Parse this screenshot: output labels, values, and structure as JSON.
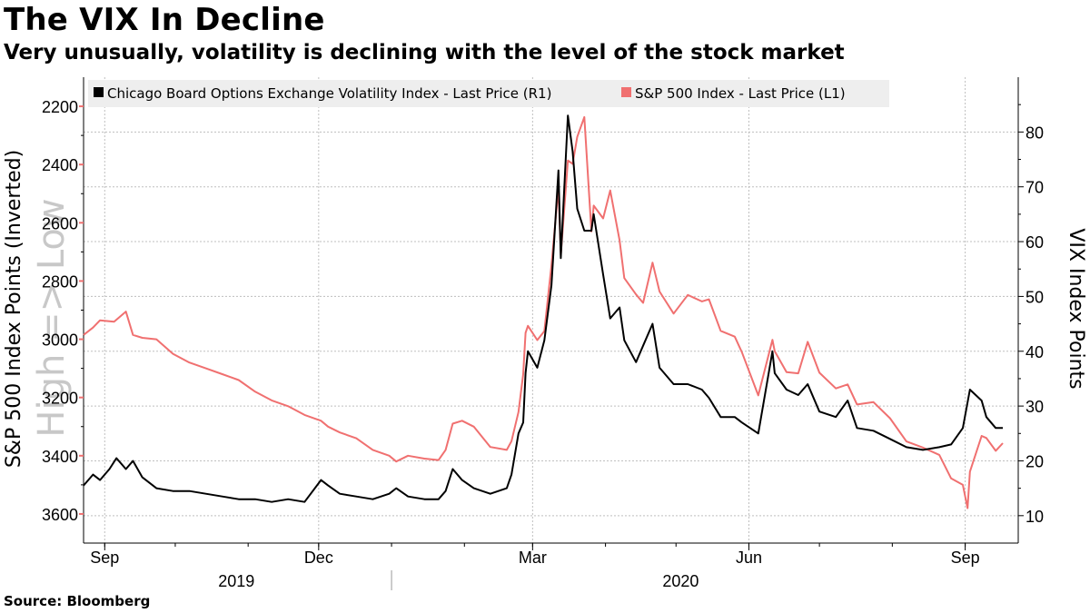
{
  "header": {
    "title": "The VIX In Decline",
    "subtitle": "Very unusually, volatility is declining with the level of the stock market"
  },
  "footer": {
    "source": "Source: Bloomberg"
  },
  "colors": {
    "vix": "#000000",
    "spx": "#f07070",
    "grid": "#bfbfbf",
    "legend_bg": "#eeeeee",
    "watermark": "#c8c8c8"
  },
  "chart_data": {
    "type": "line",
    "title": "The VIX In Decline",
    "left_axis": {
      "label": "S&P 500 Index Points (Inverted)",
      "watermark": "High => Low",
      "range": [
        3700,
        2100
      ],
      "ticks": [
        "2200",
        "2400",
        "2600",
        "2800",
        "3000",
        "3200",
        "3400",
        "3600"
      ]
    },
    "right_axis": {
      "label": "VIX Index Points",
      "range": [
        5,
        90
      ],
      "ticks": [
        "10",
        "20",
        "30",
        "40",
        "50",
        "60",
        "70",
        "80"
      ]
    },
    "x_axis": {
      "start": "2019-08-23",
      "end": "2020-09-17",
      "month_labels": [
        {
          "label": "Sep",
          "date": "2019-09-01"
        },
        {
          "label": "Dec",
          "date": "2019-12-01"
        },
        {
          "label": "Mar",
          "date": "2020-03-01"
        },
        {
          "label": "Jun",
          "date": "2020-06-01"
        },
        {
          "label": "Sep",
          "date": "2020-09-01"
        }
      ],
      "year_labels": [
        {
          "label": "2019",
          "date": "2019-10-27"
        },
        {
          "label": "2020",
          "date": "2020-05-03"
        }
      ]
    },
    "legend": [
      "Chicago Board Options Exchange Volatility Index - Last Price (R1)",
      "S&P 500 Index - Last Price (L1)"
    ],
    "series": [
      {
        "name": "Chicago Board Options Exchange Volatility Index - Last Price (R1)",
        "axis": "right",
        "points": [
          [
            "2019-08-23",
            15.5
          ],
          [
            "2019-08-27",
            17.5
          ],
          [
            "2019-08-30",
            16.5
          ],
          [
            "2019-09-03",
            18.5
          ],
          [
            "2019-09-06",
            20.5
          ],
          [
            "2019-09-10",
            18.5
          ],
          [
            "2019-09-13",
            20
          ],
          [
            "2019-09-17",
            17
          ],
          [
            "2019-09-23",
            15
          ],
          [
            "2019-09-30",
            14.5
          ],
          [
            "2019-10-07",
            14.5
          ],
          [
            "2019-10-14",
            14
          ],
          [
            "2019-10-21",
            13.5
          ],
          [
            "2019-10-28",
            13
          ],
          [
            "2019-11-04",
            13
          ],
          [
            "2019-11-11",
            12.5
          ],
          [
            "2019-11-18",
            13
          ],
          [
            "2019-11-25",
            12.5
          ],
          [
            "2019-12-02",
            16.5
          ],
          [
            "2019-12-05",
            15.5
          ],
          [
            "2019-12-10",
            14
          ],
          [
            "2019-12-17",
            13.5
          ],
          [
            "2019-12-24",
            13
          ],
          [
            "2019-12-31",
            14
          ],
          [
            "2020-01-03",
            15
          ],
          [
            "2020-01-08",
            13.5
          ],
          [
            "2020-01-15",
            13
          ],
          [
            "2020-01-21",
            13
          ],
          [
            "2020-01-24",
            14.5
          ],
          [
            "2020-01-27",
            18.5
          ],
          [
            "2020-01-31",
            16.5
          ],
          [
            "2020-02-05",
            15
          ],
          [
            "2020-02-12",
            14
          ],
          [
            "2020-02-19",
            15
          ],
          [
            "2020-02-21",
            17.5
          ],
          [
            "2020-02-24",
            25
          ],
          [
            "2020-02-26",
            27
          ],
          [
            "2020-02-27",
            36
          ],
          [
            "2020-02-28",
            40
          ],
          [
            "2020-03-03",
            37
          ],
          [
            "2020-03-06",
            42
          ],
          [
            "2020-03-09",
            52
          ],
          [
            "2020-03-12",
            73
          ],
          [
            "2020-03-13",
            57
          ],
          [
            "2020-03-16",
            83
          ],
          [
            "2020-03-18",
            76.5
          ],
          [
            "2020-03-20",
            66
          ],
          [
            "2020-03-23",
            62
          ],
          [
            "2020-03-26",
            62
          ],
          [
            "2020-03-27",
            65
          ],
          [
            "2020-03-31",
            54
          ],
          [
            "2020-04-03",
            46
          ],
          [
            "2020-04-07",
            48
          ],
          [
            "2020-04-09",
            42
          ],
          [
            "2020-04-14",
            38
          ],
          [
            "2020-04-17",
            41
          ],
          [
            "2020-04-21",
            45
          ],
          [
            "2020-04-24",
            37
          ],
          [
            "2020-04-30",
            34
          ],
          [
            "2020-05-06",
            34
          ],
          [
            "2020-05-12",
            33
          ],
          [
            "2020-05-15",
            31.5
          ],
          [
            "2020-05-20",
            28
          ],
          [
            "2020-05-26",
            28
          ],
          [
            "2020-05-29",
            27
          ],
          [
            "2020-06-05",
            25
          ],
          [
            "2020-06-11",
            40
          ],
          [
            "2020-06-12",
            36
          ],
          [
            "2020-06-17",
            33
          ],
          [
            "2020-06-22",
            32
          ],
          [
            "2020-06-26",
            34
          ],
          [
            "2020-07-01",
            29
          ],
          [
            "2020-07-08",
            28
          ],
          [
            "2020-07-13",
            31
          ],
          [
            "2020-07-17",
            26
          ],
          [
            "2020-07-24",
            25.5
          ],
          [
            "2020-07-31",
            24
          ],
          [
            "2020-08-07",
            22.5
          ],
          [
            "2020-08-14",
            22
          ],
          [
            "2020-08-21",
            22.5
          ],
          [
            "2020-08-26",
            23
          ],
          [
            "2020-08-31",
            26
          ],
          [
            "2020-09-03",
            33
          ],
          [
            "2020-09-08",
            31
          ],
          [
            "2020-09-10",
            28
          ],
          [
            "2020-09-14",
            26
          ],
          [
            "2020-09-17",
            26
          ]
        ]
      },
      {
        "name": "S&P 500 Index - Last Price (L1)",
        "axis": "left",
        "points": [
          [
            "2019-08-23",
            2985
          ],
          [
            "2019-08-27",
            2960
          ],
          [
            "2019-08-30",
            2935
          ],
          [
            "2019-09-05",
            2940
          ],
          [
            "2019-09-10",
            2905
          ],
          [
            "2019-09-13",
            2985
          ],
          [
            "2019-09-17",
            2995
          ],
          [
            "2019-09-23",
            3000
          ],
          [
            "2019-09-30",
            3050
          ],
          [
            "2019-10-07",
            3080
          ],
          [
            "2019-10-14",
            3100
          ],
          [
            "2019-10-21",
            3120
          ],
          [
            "2019-10-28",
            3140
          ],
          [
            "2019-11-04",
            3180
          ],
          [
            "2019-11-11",
            3210
          ],
          [
            "2019-11-18",
            3230
          ],
          [
            "2019-11-25",
            3260
          ],
          [
            "2019-12-02",
            3280
          ],
          [
            "2019-12-05",
            3300
          ],
          [
            "2019-12-10",
            3320
          ],
          [
            "2019-12-17",
            3340
          ],
          [
            "2019-12-24",
            3380
          ],
          [
            "2019-12-31",
            3400
          ],
          [
            "2020-01-03",
            3420
          ],
          [
            "2020-01-08",
            3400
          ],
          [
            "2020-01-15",
            3410
          ],
          [
            "2020-01-21",
            3415
          ],
          [
            "2020-01-24",
            3380
          ],
          [
            "2020-01-27",
            3290
          ],
          [
            "2020-01-31",
            3280
          ],
          [
            "2020-02-05",
            3300
          ],
          [
            "2020-02-12",
            3370
          ],
          [
            "2020-02-19",
            3380
          ],
          [
            "2020-02-21",
            3350
          ],
          [
            "2020-02-24",
            3250
          ],
          [
            "2020-02-26",
            3120
          ],
          [
            "2020-02-27",
            2978
          ],
          [
            "2020-02-28",
            2954
          ],
          [
            "2020-03-03",
            3003
          ],
          [
            "2020-03-06",
            2972
          ],
          [
            "2020-03-09",
            2746
          ],
          [
            "2020-03-12",
            2480
          ],
          [
            "2020-03-13",
            2711
          ],
          [
            "2020-03-16",
            2386
          ],
          [
            "2020-03-18",
            2398
          ],
          [
            "2020-03-20",
            2305
          ],
          [
            "2020-03-23",
            2237
          ],
          [
            "2020-03-26",
            2630
          ],
          [
            "2020-03-27",
            2541
          ],
          [
            "2020-03-31",
            2585
          ],
          [
            "2020-04-03",
            2489
          ],
          [
            "2020-04-07",
            2660
          ],
          [
            "2020-04-09",
            2790
          ],
          [
            "2020-04-14",
            2846
          ],
          [
            "2020-04-17",
            2875
          ],
          [
            "2020-04-21",
            2737
          ],
          [
            "2020-04-24",
            2836
          ],
          [
            "2020-04-30",
            2912
          ],
          [
            "2020-05-06",
            2848
          ],
          [
            "2020-05-12",
            2870
          ],
          [
            "2020-05-15",
            2863
          ],
          [
            "2020-05-20",
            2971
          ],
          [
            "2020-05-26",
            2991
          ],
          [
            "2020-05-29",
            3044
          ],
          [
            "2020-06-05",
            3193
          ],
          [
            "2020-06-11",
            3002
          ],
          [
            "2020-06-12",
            3041
          ],
          [
            "2020-06-17",
            3113
          ],
          [
            "2020-06-22",
            3117
          ],
          [
            "2020-06-26",
            3009
          ],
          [
            "2020-07-01",
            3115
          ],
          [
            "2020-07-08",
            3169
          ],
          [
            "2020-07-13",
            3155
          ],
          [
            "2020-07-17",
            3224
          ],
          [
            "2020-07-24",
            3216
          ],
          [
            "2020-07-31",
            3271
          ],
          [
            "2020-08-07",
            3351
          ],
          [
            "2020-08-14",
            3372
          ],
          [
            "2020-08-21",
            3397
          ],
          [
            "2020-08-26",
            3478
          ],
          [
            "2020-08-31",
            3500
          ],
          [
            "2020-09-02",
            3580
          ],
          [
            "2020-09-03",
            3455
          ],
          [
            "2020-09-08",
            3332
          ],
          [
            "2020-09-10",
            3339
          ],
          [
            "2020-09-14",
            3383
          ],
          [
            "2020-09-17",
            3357
          ]
        ]
      }
    ]
  }
}
